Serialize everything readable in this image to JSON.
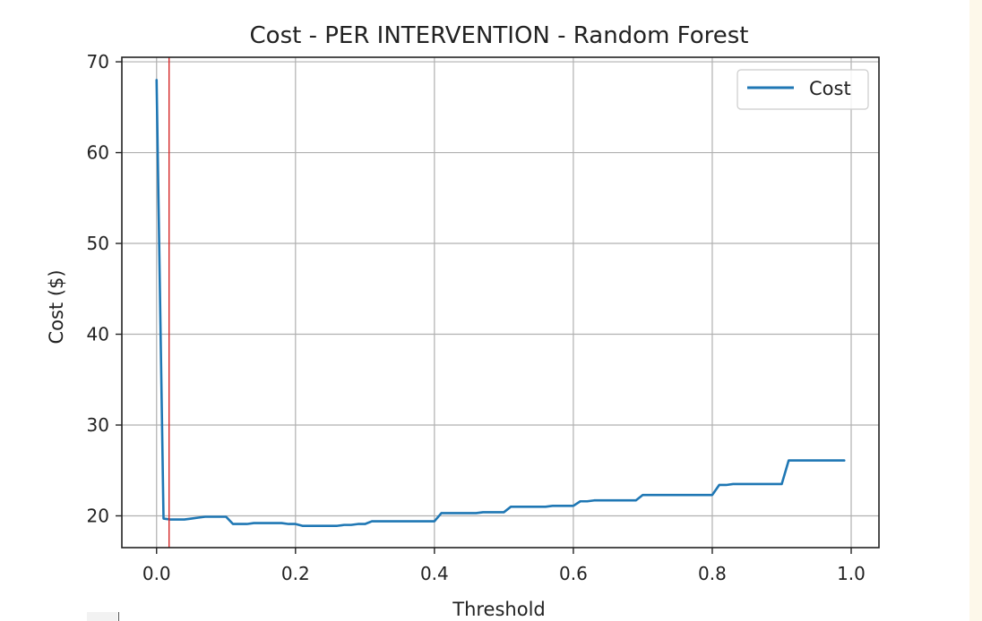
{
  "chart_data": {
    "type": "line",
    "title": "Cost - PER INTERVENTION - Random Forest",
    "xlabel": "Threshold",
    "ylabel": "Cost ($)",
    "xlim": [
      -0.05,
      1.04
    ],
    "ylim": [
      16.5,
      70.5
    ],
    "xticks": [
      "0.0",
      "0.2",
      "0.4",
      "0.6",
      "0.8",
      "1.0"
    ],
    "yticks": [
      "20",
      "30",
      "40",
      "50",
      "60",
      "70"
    ],
    "grid": true,
    "legend_position": "top-right",
    "threshold_marker": 0.018,
    "series": [
      {
        "name": "Cost",
        "color": "#1f77b4",
        "x": [
          0.0,
          0.01,
          0.02,
          0.03,
          0.04,
          0.05,
          0.06,
          0.07,
          0.08,
          0.09,
          0.1,
          0.11,
          0.12,
          0.13,
          0.14,
          0.15,
          0.16,
          0.17,
          0.18,
          0.19,
          0.2,
          0.21,
          0.22,
          0.23,
          0.24,
          0.25,
          0.26,
          0.27,
          0.28,
          0.29,
          0.3,
          0.31,
          0.32,
          0.33,
          0.34,
          0.35,
          0.36,
          0.37,
          0.38,
          0.39,
          0.4,
          0.41,
          0.42,
          0.43,
          0.44,
          0.45,
          0.46,
          0.47,
          0.48,
          0.49,
          0.5,
          0.51,
          0.52,
          0.53,
          0.54,
          0.55,
          0.56,
          0.57,
          0.58,
          0.59,
          0.6,
          0.61,
          0.62,
          0.63,
          0.64,
          0.65,
          0.66,
          0.67,
          0.68,
          0.69,
          0.7,
          0.71,
          0.72,
          0.73,
          0.74,
          0.75,
          0.76,
          0.77,
          0.78,
          0.79,
          0.8,
          0.81,
          0.82,
          0.83,
          0.84,
          0.85,
          0.86,
          0.87,
          0.88,
          0.89,
          0.9,
          0.91,
          0.92,
          0.93,
          0.94,
          0.95,
          0.96,
          0.97,
          0.98,
          0.99
        ],
        "values": [
          68.0,
          19.7,
          19.6,
          19.6,
          19.6,
          19.7,
          19.8,
          19.9,
          19.9,
          19.9,
          19.9,
          19.1,
          19.1,
          19.1,
          19.2,
          19.2,
          19.2,
          19.2,
          19.2,
          19.1,
          19.1,
          18.9,
          18.9,
          18.9,
          18.9,
          18.9,
          18.9,
          19.0,
          19.0,
          19.1,
          19.1,
          19.4,
          19.4,
          19.4,
          19.4,
          19.4,
          19.4,
          19.4,
          19.4,
          19.4,
          19.4,
          20.3,
          20.3,
          20.3,
          20.3,
          20.3,
          20.3,
          20.4,
          20.4,
          20.4,
          20.4,
          21.0,
          21.0,
          21.0,
          21.0,
          21.0,
          21.0,
          21.1,
          21.1,
          21.1,
          21.1,
          21.6,
          21.6,
          21.7,
          21.7,
          21.7,
          21.7,
          21.7,
          21.7,
          21.7,
          22.3,
          22.3,
          22.3,
          22.3,
          22.3,
          22.3,
          22.3,
          22.3,
          22.3,
          22.3,
          22.3,
          23.4,
          23.4,
          23.5,
          23.5,
          23.5,
          23.5,
          23.5,
          23.5,
          23.5,
          23.5,
          26.1,
          26.1,
          26.1,
          26.1,
          26.1,
          26.1,
          26.1,
          26.1,
          26.1
        ]
      }
    ]
  }
}
